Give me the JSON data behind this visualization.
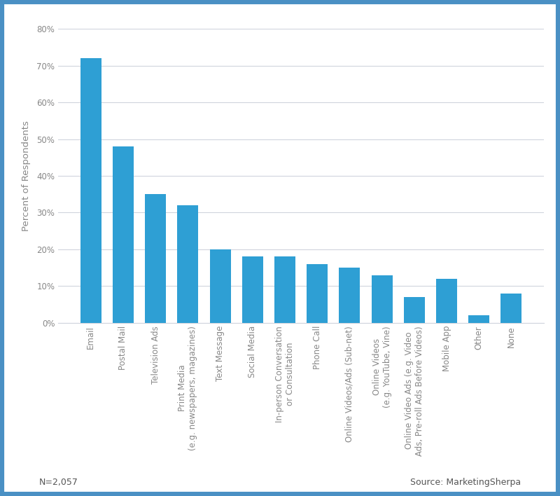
{
  "categories": [
    "Email",
    "Postal Mail",
    "Television Ads",
    "Print Media\n(e.g. newspapers, magazines)",
    "Text Message",
    "Social Media",
    "In-person Conversation\nor Consultation",
    "Phone Call",
    "Online Videos/Ads (Sub-net)",
    "Online Videos\n(e.g. YouTube, Vine)",
    "Online Video Ads (e.g. Video\nAds, Pre-roll Ads Before Videos)",
    "Mobile App",
    "Other",
    "None"
  ],
  "values": [
    72,
    48,
    35,
    32,
    20,
    18,
    18,
    16,
    15,
    13,
    7,
    12,
    2,
    8
  ],
  "bar_color": "#2e9fd4",
  "ylabel": "Percent of Respondents",
  "ylim": [
    0,
    80
  ],
  "yticks": [
    0,
    10,
    20,
    30,
    40,
    50,
    60,
    70,
    80
  ],
  "ytick_labels": [
    "0%",
    "10%",
    "20%",
    "30%",
    "40%",
    "50%",
    "60%",
    "70%",
    "80%"
  ],
  "footnote_left": "N=2,057",
  "footnote_right": "Source: MarketingSherpa",
  "background_color": "#ffffff",
  "figure_border_color": "#4a90c4",
  "grid_color": "#d0d4dd",
  "tick_color": "#888888",
  "tick_label_fontsize": 8.5,
  "ylabel_fontsize": 9.5,
  "footnote_fontsize": 9
}
